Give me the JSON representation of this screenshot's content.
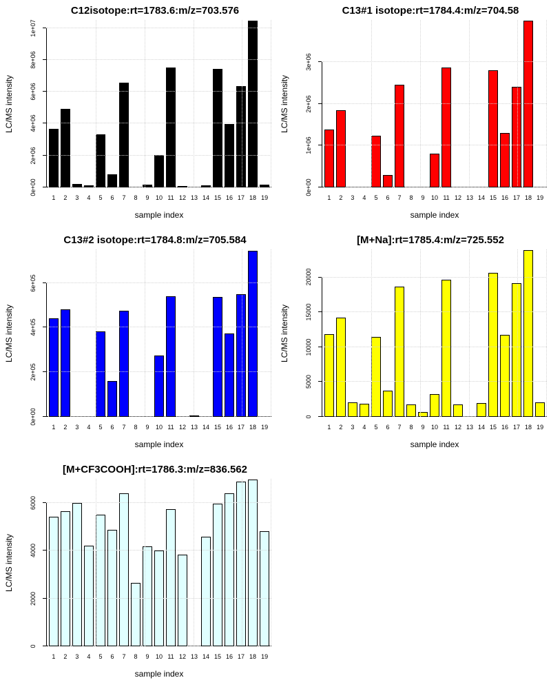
{
  "page": {
    "background": "#ffffff"
  },
  "chart_data": [
    {
      "type": "bar",
      "title": "C12isotope:rt=1783.6:m/z=703.576",
      "xlabel": "sample index",
      "ylabel": "LC/MS intensity",
      "bar_color": "#000000",
      "bar_border": "#000000",
      "categories": [
        "1",
        "2",
        "3",
        "4",
        "5",
        "6",
        "7",
        "8",
        "9",
        "10",
        "11",
        "12",
        "13",
        "14",
        "15",
        "16",
        "17",
        "18",
        "19"
      ],
      "values": [
        3680000,
        4920000,
        230000,
        130000,
        3340000,
        820000,
        6550000,
        0,
        160000,
        2040000,
        7530000,
        70000,
        0,
        130000,
        7440000,
        3980000,
        6360000,
        10450000,
        190000
      ],
      "ylim": [
        0,
        10500000
      ],
      "yticks": [
        {
          "v": 0,
          "label": "0e+00"
        },
        {
          "v": 2000000,
          "label": "2e+06"
        },
        {
          "v": 4000000,
          "label": "4e+06"
        },
        {
          "v": 6000000,
          "label": "6e+06"
        },
        {
          "v": 8000000,
          "label": "8e+06"
        },
        {
          "v": 10000000,
          "label": "1e+07"
        }
      ],
      "grid": {
        "on": true,
        "x_units": [
          5,
          10,
          15,
          20,
          23
        ],
        "x_range": 23,
        "color": "#d3d3d3"
      },
      "legend": "none"
    },
    {
      "type": "bar",
      "title": "C13#1 isotope:rt=1784.4:m/z=704.58",
      "xlabel": "sample index",
      "ylabel": "LC/MS intensity",
      "bar_color": "#ff0000",
      "bar_border": "#000000",
      "categories": [
        "1",
        "2",
        "3",
        "4",
        "5",
        "6",
        "7",
        "8",
        "9",
        "10",
        "11",
        "12",
        "13",
        "14",
        "15",
        "16",
        "17",
        "18",
        "19"
      ],
      "values": [
        1390000,
        1840000,
        0,
        0,
        1240000,
        300000,
        2450000,
        0,
        0,
        810000,
        2860000,
        0,
        0,
        0,
        2800000,
        1300000,
        2410000,
        3980000,
        0
      ],
      "ylim": [
        0,
        4000000
      ],
      "yticks": [
        {
          "v": 0,
          "label": "0e+00"
        },
        {
          "v": 1000000,
          "label": "1e+06"
        },
        {
          "v": 2000000,
          "label": "2e+06"
        },
        {
          "v": 3000000,
          "label": "3e+06"
        }
      ],
      "grid": {
        "on": true,
        "x_units": [
          5,
          10,
          15,
          20,
          23
        ],
        "x_range": 23,
        "color": "#d3d3d3"
      },
      "legend": "none"
    },
    {
      "type": "bar",
      "title": "C13#2 isotope:rt=1784.8:m/z=705.584",
      "xlabel": "sample index",
      "ylabel": "LC/MS intensity",
      "bar_color": "#0000ff",
      "bar_border": "#000000",
      "categories": [
        "1",
        "2",
        "3",
        "4",
        "5",
        "6",
        "7",
        "8",
        "9",
        "10",
        "11",
        "12",
        "13",
        "14",
        "15",
        "16",
        "17",
        "18",
        "19"
      ],
      "values": [
        442000,
        483000,
        0,
        0,
        384000,
        161000,
        475000,
        0,
        0,
        276000,
        539000,
        0,
        4000,
        0,
        536000,
        375000,
        549000,
        745000,
        0
      ],
      "ylim": [
        0,
        750000
      ],
      "yticks": [
        {
          "v": 0,
          "label": "0e+00"
        },
        {
          "v": 200000,
          "label": "2e+05"
        },
        {
          "v": 400000,
          "label": "4e+05"
        },
        {
          "v": 600000,
          "label": "6e+05"
        }
      ],
      "grid": {
        "on": true,
        "x_units": [
          5,
          10,
          15,
          20,
          23
        ],
        "x_range": 23,
        "color": "#d3d3d3"
      },
      "legend": "none"
    },
    {
      "type": "bar",
      "title": "[M+Na]:rt=1785.4:m/z=725.552",
      "xlabel": "sample index",
      "ylabel": "LC/MS intensity",
      "bar_color": "#ffff00",
      "bar_border": "#000000",
      "categories": [
        "1",
        "2",
        "3",
        "4",
        "5",
        "6",
        "7",
        "8",
        "9",
        "10",
        "11",
        "12",
        "13",
        "14",
        "15",
        "16",
        "17",
        "18",
        "19"
      ],
      "values": [
        11900,
        14200,
        2100,
        1900,
        11500,
        3800,
        18700,
        1800,
        700,
        3300,
        19700,
        1800,
        0,
        2000,
        20600,
        11800,
        19200,
        23900,
        2100
      ],
      "ylim": [
        0,
        24000
      ],
      "yticks": [
        {
          "v": 0,
          "label": "0"
        },
        {
          "v": 5000,
          "label": "5000"
        },
        {
          "v": 10000,
          "label": "10000"
        },
        {
          "v": 15000,
          "label": "15000"
        },
        {
          "v": 20000,
          "label": "20000"
        }
      ],
      "grid": {
        "on": true,
        "x_units": [
          5,
          10,
          15,
          20,
          23
        ],
        "x_range": 23,
        "color": "#d3d3d3"
      },
      "legend": "none"
    },
    {
      "type": "bar",
      "title": "[M+CF3COOH]:rt=1786.3:m/z=836.562",
      "xlabel": "sample index",
      "ylabel": "LC/MS intensity",
      "bar_color": "#e0ffff",
      "bar_border": "#000000",
      "categories": [
        "1",
        "2",
        "3",
        "4",
        "5",
        "6",
        "7",
        "8",
        "9",
        "10",
        "11",
        "12",
        "13",
        "14",
        "15",
        "16",
        "17",
        "18",
        "19"
      ],
      "values": [
        5420,
        5660,
        6000,
        4200,
        5490,
        4880,
        6390,
        2660,
        4180,
        4000,
        5730,
        3820,
        0,
        4590,
        5950,
        6400,
        6880,
        6980,
        4800
      ],
      "ylim": [
        0,
        7000
      ],
      "yticks": [
        {
          "v": 0,
          "label": "0"
        },
        {
          "v": 2000,
          "label": "2000"
        },
        {
          "v": 4000,
          "label": "4000"
        },
        {
          "v": 6000,
          "label": "6000"
        }
      ],
      "grid": {
        "on": true,
        "x_units": [
          5,
          10,
          15,
          20,
          23
        ],
        "x_range": 23,
        "color": "#d3d3d3"
      },
      "legend": "none"
    }
  ]
}
